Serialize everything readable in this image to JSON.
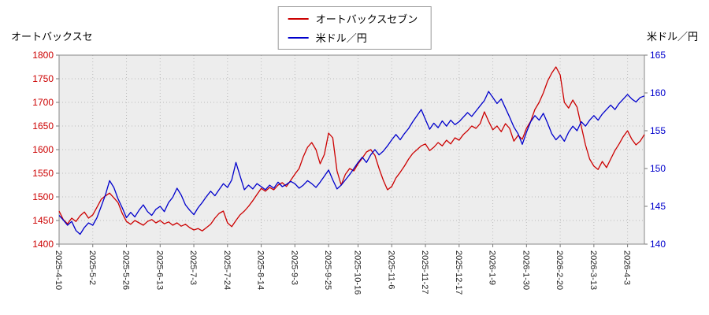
{
  "page": {
    "left_axis_title": "オートバックスセ",
    "right_axis_title": "米ドル／円"
  },
  "legend": {
    "items": [
      {
        "label": "オートバックスセブン",
        "color": "#cc0000"
      },
      {
        "label": "米ドル／円",
        "color": "#0000cc"
      }
    ]
  },
  "chart_data": {
    "type": "line",
    "title": "",
    "x_tick_labels": [
      "2025-4-10",
      "2025-5-2",
      "2025-5-26",
      "2025-6-13",
      "2025-7-3",
      "2025-7-24",
      "2025-8-14",
      "2025-9-3",
      "2025-9-25",
      "2025-10-16",
      "2025-11-6",
      "2025-11-27",
      "2025-12-17",
      "2026-1-9",
      "2026-1-30",
      "2026-2-20",
      "2026-3-13",
      "2026-4-3"
    ],
    "x_tick_indices": [
      0,
      8,
      16,
      24,
      32,
      40,
      48,
      56,
      64,
      71,
      79,
      87,
      95,
      103,
      111,
      119,
      127,
      135
    ],
    "left_axis": {
      "label": "オートバックスセ",
      "min": 1400,
      "max": 1800,
      "step": 50,
      "color": "#cc0000"
    },
    "right_axis": {
      "label": "米ドル／円",
      "min": 140,
      "max": 165,
      "step": 5,
      "color": "#0000cc"
    },
    "grid": true,
    "legend_position": "top-center",
    "series": [
      {
        "name": "オートバックスセブン",
        "axis": "left",
        "color": "#cc0000",
        "values": [
          1470,
          1452,
          1443,
          1455,
          1448,
          1460,
          1468,
          1455,
          1462,
          1478,
          1495,
          1502,
          1508,
          1498,
          1488,
          1465,
          1448,
          1442,
          1450,
          1445,
          1440,
          1448,
          1452,
          1445,
          1450,
          1443,
          1447,
          1440,
          1445,
          1438,
          1442,
          1435,
          1430,
          1433,
          1428,
          1435,
          1442,
          1455,
          1465,
          1470,
          1445,
          1437,
          1450,
          1462,
          1470,
          1480,
          1492,
          1505,
          1518,
          1512,
          1520,
          1515,
          1525,
          1530,
          1522,
          1535,
          1548,
          1560,
          1585,
          1605,
          1615,
          1600,
          1570,
          1590,
          1635,
          1625,
          1555,
          1525,
          1548,
          1560,
          1555,
          1570,
          1582,
          1595,
          1600,
          1588,
          1560,
          1535,
          1515,
          1522,
          1540,
          1552,
          1565,
          1580,
          1592,
          1600,
          1608,
          1612,
          1598,
          1605,
          1615,
          1608,
          1620,
          1612,
          1625,
          1620,
          1632,
          1640,
          1650,
          1645,
          1655,
          1680,
          1660,
          1642,
          1650,
          1638,
          1655,
          1645,
          1618,
          1630,
          1622,
          1645,
          1660,
          1685,
          1700,
          1720,
          1745,
          1762,
          1775,
          1758,
          1700,
          1688,
          1705,
          1690,
          1650,
          1610,
          1580,
          1565,
          1558,
          1575,
          1562,
          1580,
          1598,
          1612,
          1628,
          1640,
          1622,
          1610,
          1618,
          1632
        ]
      },
      {
        "name": "米ドル／円",
        "axis": "right",
        "color": "#0000cc",
        "values": [
          143.8,
          143.2,
          142.5,
          143.0,
          141.8,
          141.3,
          142.2,
          142.8,
          142.5,
          143.5,
          145.0,
          146.5,
          148.4,
          147.5,
          146.0,
          144.8,
          143.5,
          144.2,
          143.6,
          144.5,
          145.2,
          144.3,
          143.8,
          144.6,
          145.0,
          144.3,
          145.5,
          146.2,
          147.4,
          146.5,
          145.2,
          144.5,
          143.9,
          144.8,
          145.5,
          146.3,
          147.0,
          146.4,
          147.2,
          148.0,
          147.5,
          148.5,
          150.8,
          149.0,
          147.2,
          147.8,
          147.3,
          148.0,
          147.6,
          147.2,
          147.8,
          147.4,
          148.2,
          147.6,
          147.9,
          148.3,
          148.0,
          147.4,
          147.8,
          148.4,
          148.0,
          147.5,
          148.2,
          149.0,
          149.8,
          148.5,
          147.3,
          147.8,
          148.5,
          149.2,
          150.0,
          150.8,
          151.5,
          150.8,
          151.8,
          152.5,
          151.8,
          152.3,
          153.0,
          153.8,
          154.5,
          153.8,
          154.6,
          155.3,
          156.2,
          157.0,
          157.8,
          156.5,
          155.2,
          156.0,
          155.4,
          156.3,
          155.6,
          156.4,
          155.8,
          156.2,
          156.8,
          157.4,
          156.9,
          157.6,
          158.3,
          159.0,
          160.2,
          159.4,
          158.6,
          159.2,
          158.0,
          156.8,
          155.5,
          154.6,
          153.2,
          154.8,
          156.2,
          157.0,
          156.4,
          157.3,
          156.0,
          154.6,
          153.8,
          154.4,
          153.6,
          154.8,
          155.6,
          155.0,
          156.2,
          155.6,
          156.4,
          157.0,
          156.4,
          157.2,
          157.8,
          158.4,
          157.8,
          158.6,
          159.2,
          159.8,
          159.2,
          158.8,
          159.4,
          159.6
        ]
      }
    ]
  }
}
